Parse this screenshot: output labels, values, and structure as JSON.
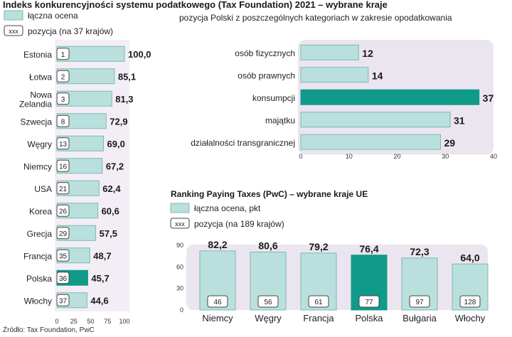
{
  "title": "Indeks konkurencyjności systemu podatkowego (Tax Foundation) 2021 – wybrane kraje",
  "source": "Źródło: Tax Foundation, PwC",
  "colors": {
    "bar": "#b9e0dd",
    "bar_stroke": "#7fb8b2",
    "highlight": "#0f9a8a",
    "panel": "#f3eef5",
    "panel_right": "#ebe5ef"
  },
  "chart_data": [
    {
      "type": "bar",
      "orientation": "horizontal",
      "legend": {
        "score": "łączna ocena",
        "position_box": "xxx",
        "position": "pozycja (na 37 krajów)"
      },
      "categories": [
        "Estonia",
        "Łotwa",
        "Nowa Zelandia",
        "Szwecja",
        "Węgry",
        "Niemcy",
        "USA",
        "Korea",
        "Grecja",
        "Francja",
        "Polska",
        "Włochy"
      ],
      "category_lines": [
        [
          "Estonia"
        ],
        [
          "Łotwa"
        ],
        [
          "Nowa",
          "Zelandia"
        ],
        [
          "Szwecja"
        ],
        [
          "Węgry"
        ],
        [
          "Niemcy"
        ],
        [
          "USA"
        ],
        [
          "Korea"
        ],
        [
          "Grecja"
        ],
        [
          "Francja"
        ],
        [
          "Polska"
        ],
        [
          "Włochy"
        ]
      ],
      "ranks": [
        "1",
        "2",
        "3",
        "8",
        "13",
        "16",
        "21",
        "26",
        "29",
        "35",
        "36",
        "37"
      ],
      "values": [
        100.0,
        85.1,
        81.3,
        72.9,
        69.0,
        67.2,
        62.4,
        60.6,
        57.5,
        48.7,
        45.7,
        44.6
      ],
      "value_labels": [
        "100,0",
        "85,1",
        "81,3",
        "72,9",
        "69,0",
        "67,2",
        "62,4",
        "60,6",
        "57,5",
        "48,7",
        "45,7",
        "44,6"
      ],
      "highlight": "Polska",
      "xlim": [
        0,
        100
      ],
      "ticks": [
        "0",
        "25",
        "50",
        "75",
        "100"
      ]
    },
    {
      "type": "bar",
      "orientation": "horizontal",
      "title": "pozycja Polski z poszczególnych kategoriach w zakresie opodatkowania",
      "categories": [
        "osób fizycznych",
        "osób prawnych",
        "konsumpcji",
        "majątku",
        "działalności transgranicznej"
      ],
      "values": [
        12,
        14,
        37,
        31,
        29
      ],
      "value_labels": [
        "12",
        "14",
        "37",
        "31",
        "29"
      ],
      "highlight": "konsumpcji",
      "xlim": [
        0,
        40
      ],
      "ticks": [
        "0",
        "10",
        "20",
        "30",
        "40"
      ]
    },
    {
      "type": "bar",
      "orientation": "vertical",
      "title": "Ranking Paying Taxes (PwC) – wybrane kraje UE",
      "legend": {
        "score": "łączna ocena, pkt",
        "position_box": "xxx",
        "position": "pozycja (na 189 krajów)"
      },
      "categories": [
        "Niemcy",
        "Węgry",
        "Francja",
        "Polska",
        "Bułgaria",
        "Włochy"
      ],
      "values": [
        82.2,
        80.6,
        79.2,
        76.4,
        72.3,
        64.0
      ],
      "value_labels": [
        "82,2",
        "80,6",
        "79,2",
        "76,4",
        "72,3",
        "64,0"
      ],
      "ranks": [
        "46",
        "56",
        "61",
        "77",
        "97",
        "128"
      ],
      "highlight": "Polska",
      "ylim": [
        0,
        90
      ],
      "ticks": [
        "0",
        "30",
        "60",
        "90"
      ]
    }
  ]
}
